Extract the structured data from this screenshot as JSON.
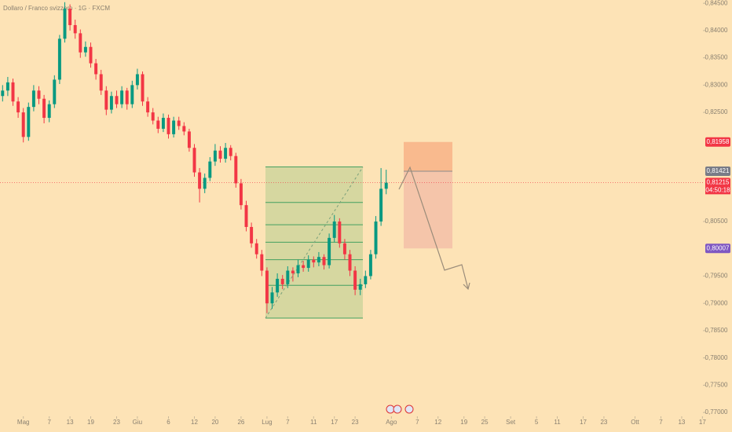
{
  "chart_data": {
    "type": "candlestick",
    "title": "Dollaro / Franco svizzero · 1G · FXCM",
    "up_color": "#089981",
    "down_color": "#f23645",
    "open": [
      0.828,
      0.829,
      0.8305,
      0.827,
      0.825,
      0.8205,
      0.826,
      0.829,
      0.8275,
      0.824,
      0.8265,
      0.831,
      0.8385,
      0.844,
      0.841,
      0.8395,
      0.836,
      0.837,
      0.834,
      0.832,
      0.829,
      0.8255,
      0.828,
      0.8265,
      0.829,
      0.8265,
      0.83,
      0.832,
      0.827,
      0.825,
      0.8235,
      0.822,
      0.824,
      0.821,
      0.8235,
      0.8225,
      0.8215,
      0.8185,
      0.814,
      0.811,
      0.813,
      0.816,
      0.818,
      0.8165,
      0.8185,
      0.817,
      0.812,
      0.808,
      0.804,
      0.801,
      0.799,
      0.796,
      0.79,
      0.792,
      0.7945,
      0.7935,
      0.796,
      0.7955,
      0.797,
      0.7965,
      0.798,
      0.7975,
      0.7985,
      0.797,
      0.802,
      0.805,
      0.801,
      0.799,
      0.796,
      0.7925,
      0.7935,
      0.795,
      0.799,
      0.805,
      0.811
    ],
    "high": [
      0.83,
      0.8315,
      0.8312,
      0.8278,
      0.8258,
      0.8268,
      0.83,
      0.8298,
      0.8282,
      0.8272,
      0.8318,
      0.8392,
      0.8452,
      0.8448,
      0.842,
      0.8402,
      0.838,
      0.8378,
      0.8348,
      0.8328,
      0.8298,
      0.8288,
      0.829,
      0.8298,
      0.8295,
      0.8308,
      0.833,
      0.8325,
      0.8278,
      0.8258,
      0.8242,
      0.8248,
      0.8246,
      0.8242,
      0.8242,
      0.8232,
      0.822,
      0.8192,
      0.8148,
      0.8138,
      0.8168,
      0.8192,
      0.8188,
      0.8194,
      0.819,
      0.8176,
      0.8128,
      0.8088,
      0.8048,
      0.8018,
      0.7998,
      0.7966,
      0.793,
      0.7955,
      0.7952,
      0.7968,
      0.7966,
      0.798,
      0.7978,
      0.7988,
      0.7986,
      0.7994,
      0.799,
      0.8028,
      0.8062,
      0.8056,
      0.8018,
      0.7998,
      0.7968,
      0.7945,
      0.796,
      0.7998,
      0.806,
      0.8148,
      0.8145
    ],
    "low": [
      0.827,
      0.828,
      0.8262,
      0.824,
      0.8195,
      0.8198,
      0.8252,
      0.8265,
      0.823,
      0.8232,
      0.8258,
      0.8302,
      0.8378,
      0.84,
      0.8385,
      0.835,
      0.8352,
      0.8332,
      0.831,
      0.8282,
      0.8245,
      0.8248,
      0.8258,
      0.8258,
      0.8255,
      0.8258,
      0.8292,
      0.8262,
      0.8242,
      0.8228,
      0.8212,
      0.8214,
      0.8202,
      0.8204,
      0.8218,
      0.8208,
      0.8178,
      0.8132,
      0.8085,
      0.8102,
      0.8124,
      0.8152,
      0.8158,
      0.8158,
      0.8162,
      0.8112,
      0.8072,
      0.8032,
      0.8002,
      0.7982,
      0.795,
      0.7882,
      0.789,
      0.7912,
      0.7926,
      0.7928,
      0.794,
      0.7948,
      0.7958,
      0.7958,
      0.7966,
      0.7968,
      0.7962,
      0.7964,
      0.8012,
      0.8002,
      0.798,
      0.795,
      0.7915,
      0.7915,
      0.7928,
      0.7944,
      0.7982,
      0.8042,
      0.81
    ],
    "close": [
      0.829,
      0.8305,
      0.827,
      0.825,
      0.8205,
      0.826,
      0.829,
      0.8275,
      0.824,
      0.8265,
      0.831,
      0.8385,
      0.844,
      0.841,
      0.8395,
      0.836,
      0.837,
      0.834,
      0.832,
      0.829,
      0.8255,
      0.828,
      0.8265,
      0.829,
      0.8265,
      0.83,
      0.832,
      0.827,
      0.825,
      0.8235,
      0.822,
      0.824,
      0.821,
      0.8235,
      0.8225,
      0.8215,
      0.8185,
      0.814,
      0.811,
      0.813,
      0.816,
      0.818,
      0.8165,
      0.8185,
      0.817,
      0.812,
      0.808,
      0.804,
      0.801,
      0.799,
      0.796,
      0.79,
      0.792,
      0.7945,
      0.7935,
      0.796,
      0.7955,
      0.797,
      0.7965,
      0.798,
      0.7975,
      0.7985,
      0.797,
      0.802,
      0.805,
      0.801,
      0.799,
      0.796,
      0.7925,
      0.7935,
      0.795,
      0.799,
      0.805,
      0.811,
      0.8121
    ],
    "ylim": [
      0.7693,
      0.8456
    ],
    "yticks": [
      {
        "value": 0.845,
        "label": "0,84500"
      },
      {
        "value": 0.84,
        "label": "0,84000"
      },
      {
        "value": 0.835,
        "label": "0,83500"
      },
      {
        "value": 0.83,
        "label": "0,83000"
      },
      {
        "value": 0.825,
        "label": "0,82500"
      },
      {
        "value": 0.805,
        "label": "0,80500"
      },
      {
        "value": 0.795,
        "label": "0,79500"
      },
      {
        "value": 0.79,
        "label": "0,79000"
      },
      {
        "value": 0.785,
        "label": "0,78500"
      },
      {
        "value": 0.78,
        "label": "0,78000"
      },
      {
        "value": 0.775,
        "label": "0,77500"
      },
      {
        "value": 0.77,
        "label": "0,77000"
      }
    ],
    "xlim": [
      -0.5,
      135.1
    ],
    "xticks": [
      {
        "value": 4,
        "label": "Mag"
      },
      {
        "value": 9,
        "label": "7"
      },
      {
        "value": 13,
        "label": "13"
      },
      {
        "value": 17,
        "label": "19"
      },
      {
        "value": 22,
        "label": "23"
      },
      {
        "value": 26,
        "label": "Giu"
      },
      {
        "value": 32,
        "label": "6"
      },
      {
        "value": 37,
        "label": "12"
      },
      {
        "value": 41,
        "label": "20"
      },
      {
        "value": 46,
        "label": "26"
      },
      {
        "value": 51,
        "label": "Lug"
      },
      {
        "value": 55,
        "label": "7"
      },
      {
        "value": 60,
        "label": "11"
      },
      {
        "value": 64,
        "label": "17"
      },
      {
        "value": 68,
        "label": "23"
      },
      {
        "value": 75,
        "label": "Ago"
      },
      {
        "value": 80,
        "label": "7"
      },
      {
        "value": 84,
        "label": "12"
      },
      {
        "value": 89,
        "label": "19"
      },
      {
        "value": 93,
        "label": "25"
      },
      {
        "value": 98,
        "label": "Set"
      },
      {
        "value": 103,
        "label": "5"
      },
      {
        "value": 107,
        "label": "11"
      },
      {
        "value": 112,
        "label": "17"
      },
      {
        "value": 116,
        "label": "23"
      },
      {
        "value": 122,
        "label": "Ott"
      },
      {
        "value": 127,
        "label": "7"
      },
      {
        "value": 131,
        "label": "13"
      },
      {
        "value": 135,
        "label": "17"
      }
    ],
    "last_price": {
      "value": 0.81215,
      "label": "0,81215",
      "countdown": "04:50:18"
    },
    "position": {
      "stop": {
        "value": 0.81958,
        "label": "0,81958"
      },
      "entry": {
        "value": 0.81421,
        "label": "0,81421"
      },
      "target": {
        "value": 0.80007,
        "label": "0,80007"
      }
    },
    "fib": {
      "top": 0.815,
      "bottom": 0.7873,
      "levels": [
        0.8085,
        0.8044,
        0.8012,
        0.798,
        0.7933
      ]
    }
  }
}
